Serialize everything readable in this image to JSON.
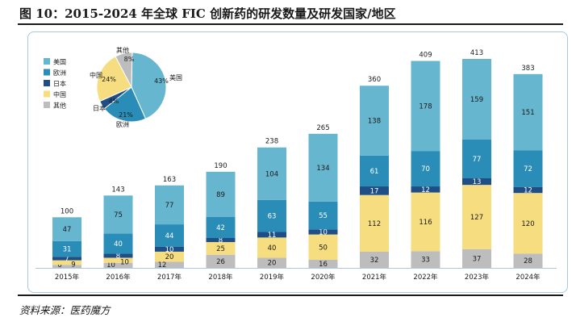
{
  "figure": {
    "title": "图 10：2015-2024 年全球 FIC 创新药的研发数量及研发国家/地区",
    "source": "资料来源：医药魔方"
  },
  "chart_data": [
    {
      "type": "bar",
      "stacked": true,
      "title": "",
      "xlabel": "",
      "ylabel": "",
      "categories": [
        "2015年",
        "2016年",
        "2017年",
        "2018年",
        "2019年",
        "2020年",
        "2021年",
        "2022年",
        "2023年",
        "2024年"
      ],
      "series": [
        {
          "name": "其他",
          "color": "#bdbdbd",
          "values": [
            6,
            10,
            12,
            26,
            20,
            16,
            32,
            33,
            37,
            28
          ]
        },
        {
          "name": "中国",
          "color": "#f6dd7f",
          "values": [
            9,
            10,
            20,
            25,
            40,
            50,
            112,
            116,
            127,
            120
          ]
        },
        {
          "name": "日本",
          "color": "#1f4e86",
          "values": [
            7,
            8,
            10,
            8,
            11,
            10,
            17,
            12,
            13,
            12
          ]
        },
        {
          "name": "欧洲",
          "color": "#2a8db8",
          "values": [
            31,
            40,
            44,
            42,
            63,
            55,
            61,
            70,
            77,
            72
          ]
        },
        {
          "name": "美国",
          "color": "#67b6d0",
          "values": [
            47,
            75,
            77,
            89,
            104,
            134,
            138,
            178,
            159,
            151
          ]
        }
      ],
      "totals": [
        100,
        143,
        163,
        190,
        238,
        265,
        360,
        409,
        413,
        383
      ],
      "ylim": [
        0,
        413
      ],
      "legend": {
        "position": "top-left",
        "entries": [
          {
            "name": "美国",
            "color": "#67b6d0"
          },
          {
            "name": "欧洲",
            "color": "#2a8db8"
          },
          {
            "name": "日本",
            "color": "#1f4e86"
          },
          {
            "name": "中国",
            "color": "#f6dd7f"
          },
          {
            "name": "其他",
            "color": "#bdbdbd"
          }
        ]
      }
    },
    {
      "type": "pie",
      "title": "",
      "slices": [
        {
          "name": "美国",
          "value": 43,
          "label": "43%",
          "color": "#67b6d0"
        },
        {
          "name": "欧洲",
          "value": 21,
          "label": "21%",
          "color": "#2a8db8"
        },
        {
          "name": "日本",
          "value": 4,
          "label": "4%",
          "color": "#1f4e86"
        },
        {
          "name": "中国",
          "value": 24,
          "label": "24%",
          "color": "#f6dd7f"
        },
        {
          "name": "其他",
          "value": 8,
          "label": "8%",
          "color": "#bdbdbd"
        }
      ]
    }
  ]
}
